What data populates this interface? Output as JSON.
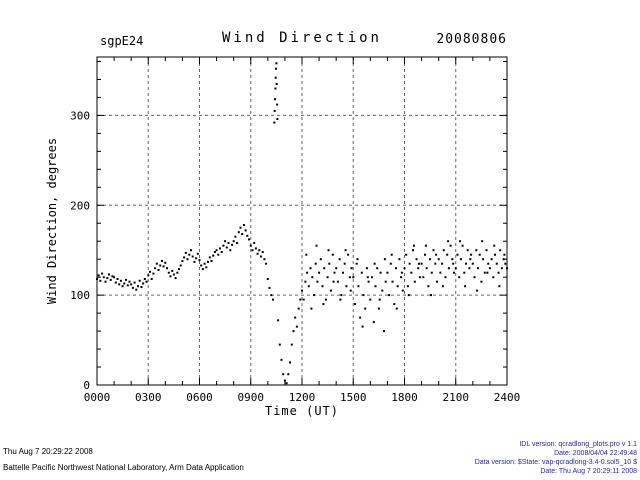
{
  "header": {
    "site_label": "sgpE24",
    "title": "Wind Direction",
    "date_label": "20080806"
  },
  "axes": {
    "x": {
      "label": "Time (UT)",
      "min": 0,
      "max": 24,
      "tick_values": [
        0,
        3,
        6,
        9,
        12,
        15,
        18,
        21,
        24
      ],
      "tick_labels": [
        "0000",
        "0300",
        "0600",
        "0900",
        "1200",
        "1500",
        "1800",
        "2100",
        "2400"
      ],
      "minor_step": 1
    },
    "y": {
      "label": "Wind Direction, degrees",
      "min": 0,
      "max": 365,
      "tick_values": [
        0,
        100,
        200,
        300
      ],
      "tick_labels": [
        "0",
        "100",
        "200",
        "300"
      ],
      "minor_step": 20
    }
  },
  "footer": {
    "left": {
      "line1": "Thu Aug  7 20:29:22 2008",
      "line2": "Battelle Pacific Northwest National Laboratory, Arm Data Application"
    },
    "right": {
      "color": "#2a2a9a",
      "lines": [
        "IDL version: qcradlong_plots.pro v 1.1",
        "Date: 2008/04/04 22:49:48",
        "Data version: $State: vap-qcradlong-3.4-0.sol5_10 $",
        "Date: Thu Aug  7 20:29:11 2008"
      ]
    }
  },
  "chart_data": {
    "type": "scatter",
    "title": "Wind Direction",
    "subtitle_left": "sgpE24",
    "subtitle_right": "20080806",
    "xlabel": "Time (UT)",
    "ylabel": "Wind Direction, degrees",
    "xlim": [
      0,
      24
    ],
    "ylim": [
      0,
      365
    ],
    "x_tick_labels": [
      "0000",
      "0300",
      "0600",
      "0900",
      "1200",
      "1500",
      "1800",
      "2100",
      "2400"
    ],
    "y_tick_values": [
      0,
      100,
      200,
      300
    ],
    "grid": "dashed",
    "legend": "none",
    "marker": "dot",
    "marker_color": "#000000",
    "points": [
      [
        0.0,
        118
      ],
      [
        0.1,
        122
      ],
      [
        0.2,
        116
      ],
      [
        0.3,
        124
      ],
      [
        0.4,
        120
      ],
      [
        0.5,
        115
      ],
      [
        0.6,
        119
      ],
      [
        0.7,
        123
      ],
      [
        0.8,
        117
      ],
      [
        0.9,
        121
      ],
      [
        1.0,
        120
      ],
      [
        1.1,
        114
      ],
      [
        1.2,
        118
      ],
      [
        1.3,
        112
      ],
      [
        1.4,
        116
      ],
      [
        1.5,
        110
      ],
      [
        1.6,
        113
      ],
      [
        1.7,
        117
      ],
      [
        1.8,
        111
      ],
      [
        1.9,
        115
      ],
      [
        2.0,
        112
      ],
      [
        2.1,
        108
      ],
      [
        2.2,
        114
      ],
      [
        2.3,
        106
      ],
      [
        2.4,
        110
      ],
      [
        2.5,
        116
      ],
      [
        2.6,
        109
      ],
      [
        2.7,
        113
      ],
      [
        2.8,
        118
      ],
      [
        2.9,
        115
      ],
      [
        3.0,
        122
      ],
      [
        3.1,
        126
      ],
      [
        3.2,
        118
      ],
      [
        3.3,
        124
      ],
      [
        3.4,
        130
      ],
      [
        3.5,
        135
      ],
      [
        3.6,
        128
      ],
      [
        3.7,
        133
      ],
      [
        3.8,
        138
      ],
      [
        3.9,
        132
      ],
      [
        4.0,
        136
      ],
      [
        4.1,
        130
      ],
      [
        4.2,
        125
      ],
      [
        4.3,
        121
      ],
      [
        4.4,
        127
      ],
      [
        4.5,
        123
      ],
      [
        4.6,
        119
      ],
      [
        4.7,
        125
      ],
      [
        4.8,
        129
      ],
      [
        4.9,
        133
      ],
      [
        5.0,
        138
      ],
      [
        5.1,
        142
      ],
      [
        5.2,
        147
      ],
      [
        5.3,
        140
      ],
      [
        5.4,
        145
      ],
      [
        5.5,
        150
      ],
      [
        5.6,
        143
      ],
      [
        5.7,
        137
      ],
      [
        5.8,
        141
      ],
      [
        5.9,
        146
      ],
      [
        6.0,
        139
      ],
      [
        6.1,
        133
      ],
      [
        6.2,
        129
      ],
      [
        6.3,
        135
      ],
      [
        6.4,
        131
      ],
      [
        6.5,
        137
      ],
      [
        6.6,
        142
      ],
      [
        6.7,
        138
      ],
      [
        6.8,
        144
      ],
      [
        6.9,
        148
      ],
      [
        7.0,
        150
      ],
      [
        7.1,
        145
      ],
      [
        7.2,
        152
      ],
      [
        7.3,
        148
      ],
      [
        7.4,
        155
      ],
      [
        7.5,
        160
      ],
      [
        7.6,
        153
      ],
      [
        7.7,
        158
      ],
      [
        7.8,
        150
      ],
      [
        7.9,
        156
      ],
      [
        8.0,
        160
      ],
      [
        8.1,
        165
      ],
      [
        8.2,
        158
      ],
      [
        8.3,
        170
      ],
      [
        8.4,
        175
      ],
      [
        8.5,
        168
      ],
      [
        8.6,
        178
      ],
      [
        8.7,
        172
      ],
      [
        8.8,
        166
      ],
      [
        8.9,
        162
      ],
      [
        9.0,
        155
      ],
      [
        9.1,
        150
      ],
      [
        9.2,
        158
      ],
      [
        9.3,
        152
      ],
      [
        9.4,
        146
      ],
      [
        9.5,
        150
      ],
      [
        9.6,
        143
      ],
      [
        9.7,
        148
      ],
      [
        9.8,
        140
      ],
      [
        9.9,
        135
      ],
      [
        10.0,
        118
      ],
      [
        10.1,
        108
      ],
      [
        10.2,
        100
      ],
      [
        10.3,
        95
      ],
      [
        10.38,
        292
      ],
      [
        10.4,
        305
      ],
      [
        10.42,
        318
      ],
      [
        10.44,
        330
      ],
      [
        10.46,
        342
      ],
      [
        10.48,
        352
      ],
      [
        10.5,
        358
      ],
      [
        10.52,
        335
      ],
      [
        10.54,
        312
      ],
      [
        10.56,
        296
      ],
      [
        10.6,
        72
      ],
      [
        10.7,
        45
      ],
      [
        10.8,
        28
      ],
      [
        10.9,
        12
      ],
      [
        11.0,
        5
      ],
      [
        11.1,
        2
      ],
      [
        11.2,
        12
      ],
      [
        11.3,
        25
      ],
      [
        11.4,
        45
      ],
      [
        11.5,
        60
      ],
      [
        11.6,
        75
      ],
      [
        11.7,
        65
      ],
      [
        11.8,
        85
      ],
      [
        11.9,
        95
      ],
      [
        12.0,
        105
      ],
      [
        12.1,
        95
      ],
      [
        12.2,
        115
      ],
      [
        12.25,
        145
      ],
      [
        12.3,
        125
      ],
      [
        12.4,
        110
      ],
      [
        12.5,
        130
      ],
      [
        12.55,
        85
      ],
      [
        12.6,
        120
      ],
      [
        12.7,
        100
      ],
      [
        12.8,
        135
      ],
      [
        12.85,
        155
      ],
      [
        12.9,
        115
      ],
      [
        13.0,
        125
      ],
      [
        13.1,
        140
      ],
      [
        13.2,
        110
      ],
      [
        13.25,
        90
      ],
      [
        13.3,
        130
      ],
      [
        13.4,
        95
      ],
      [
        13.5,
        120
      ],
      [
        13.55,
        150
      ],
      [
        13.6,
        135
      ],
      [
        13.7,
        105
      ],
      [
        13.8,
        145
      ],
      [
        13.85,
        115
      ],
      [
        13.9,
        125
      ],
      [
        14.0,
        130
      ],
      [
        14.1,
        115
      ],
      [
        14.2,
        140
      ],
      [
        14.25,
        95
      ],
      [
        14.3,
        100
      ],
      [
        14.4,
        125
      ],
      [
        14.5,
        135
      ],
      [
        14.55,
        150
      ],
      [
        14.6,
        110
      ],
      [
        14.7,
        145
      ],
      [
        14.8,
        120
      ],
      [
        14.85,
        105
      ],
      [
        14.9,
        130
      ],
      [
        15.0,
        120
      ],
      [
        15.1,
        90
      ],
      [
        15.2,
        135
      ],
      [
        15.25,
        140
      ],
      [
        15.3,
        110
      ],
      [
        15.4,
        75
      ],
      [
        15.5,
        125
      ],
      [
        15.55,
        65
      ],
      [
        15.6,
        100
      ],
      [
        15.7,
        85
      ],
      [
        15.8,
        130
      ],
      [
        15.85,
        120
      ],
      [
        15.9,
        115
      ],
      [
        16.0,
        95
      ],
      [
        16.1,
        120
      ],
      [
        16.2,
        70
      ],
      [
        16.25,
        135
      ],
      [
        16.3,
        110
      ],
      [
        16.4,
        130
      ],
      [
        16.5,
        85
      ],
      [
        16.55,
        95
      ],
      [
        16.6,
        125
      ],
      [
        16.7,
        105
      ],
      [
        16.8,
        60
      ],
      [
        16.85,
        140
      ],
      [
        16.9,
        115
      ],
      [
        17.0,
        125
      ],
      [
        17.1,
        100
      ],
      [
        17.2,
        135
      ],
      [
        17.25,
        145
      ],
      [
        17.3,
        115
      ],
      [
        17.4,
        90
      ],
      [
        17.5,
        130
      ],
      [
        17.55,
        85
      ],
      [
        17.6,
        110
      ],
      [
        17.7,
        140
      ],
      [
        17.8,
        120
      ],
      [
        17.85,
        125
      ],
      [
        17.9,
        105
      ],
      [
        18.0,
        130
      ],
      [
        18.1,
        145
      ],
      [
        18.2,
        110
      ],
      [
        18.25,
        100
      ],
      [
        18.3,
        135
      ],
      [
        18.4,
        125
      ],
      [
        18.5,
        150
      ],
      [
        18.55,
        155
      ],
      [
        18.6,
        115
      ],
      [
        18.7,
        140
      ],
      [
        18.8,
        130
      ],
      [
        18.85,
        135
      ],
      [
        18.9,
        120
      ],
      [
        19.0,
        135
      ],
      [
        19.1,
        120
      ],
      [
        19.2,
        145
      ],
      [
        19.25,
        155
      ],
      [
        19.3,
        130
      ],
      [
        19.4,
        110
      ],
      [
        19.5,
        140
      ],
      [
        19.55,
        100
      ],
      [
        19.6,
        125
      ],
      [
        19.7,
        150
      ],
      [
        19.8,
        135
      ],
      [
        19.85,
        145
      ],
      [
        19.9,
        115
      ],
      [
        20.0,
        140
      ],
      [
        20.1,
        125
      ],
      [
        20.2,
        135
      ],
      [
        20.25,
        110
      ],
      [
        20.3,
        150
      ],
      [
        20.4,
        120
      ],
      [
        20.5,
        145
      ],
      [
        20.55,
        160
      ],
      [
        20.6,
        130
      ],
      [
        20.7,
        155
      ],
      [
        20.8,
        140
      ],
      [
        20.85,
        135
      ],
      [
        20.9,
        125
      ],
      [
        21.0,
        130
      ],
      [
        21.1,
        145
      ],
      [
        21.2,
        120
      ],
      [
        21.25,
        160
      ],
      [
        21.3,
        140
      ],
      [
        21.4,
        155
      ],
      [
        21.5,
        125
      ],
      [
        21.55,
        110
      ],
      [
        21.6,
        135
      ],
      [
        21.7,
        150
      ],
      [
        21.8,
        130
      ],
      [
        21.85,
        140
      ],
      [
        21.9,
        145
      ],
      [
        22.0,
        135
      ],
      [
        22.1,
        120
      ],
      [
        22.2,
        150
      ],
      [
        22.25,
        105
      ],
      [
        22.3,
        130
      ],
      [
        22.4,
        145
      ],
      [
        22.5,
        115
      ],
      [
        22.55,
        160
      ],
      [
        22.6,
        140
      ],
      [
        22.7,
        125
      ],
      [
        22.8,
        150
      ],
      [
        22.85,
        125
      ],
      [
        22.9,
        135
      ],
      [
        23.0,
        130
      ],
      [
        23.1,
        140
      ],
      [
        23.2,
        120
      ],
      [
        23.25,
        155
      ],
      [
        23.3,
        145
      ],
      [
        23.4,
        135
      ],
      [
        23.5,
        125
      ],
      [
        23.55,
        110
      ],
      [
        23.6,
        150
      ],
      [
        23.7,
        130
      ],
      [
        23.8,
        140
      ],
      [
        23.85,
        145
      ],
      [
        23.9,
        135
      ],
      [
        24.0,
        130
      ]
    ]
  }
}
